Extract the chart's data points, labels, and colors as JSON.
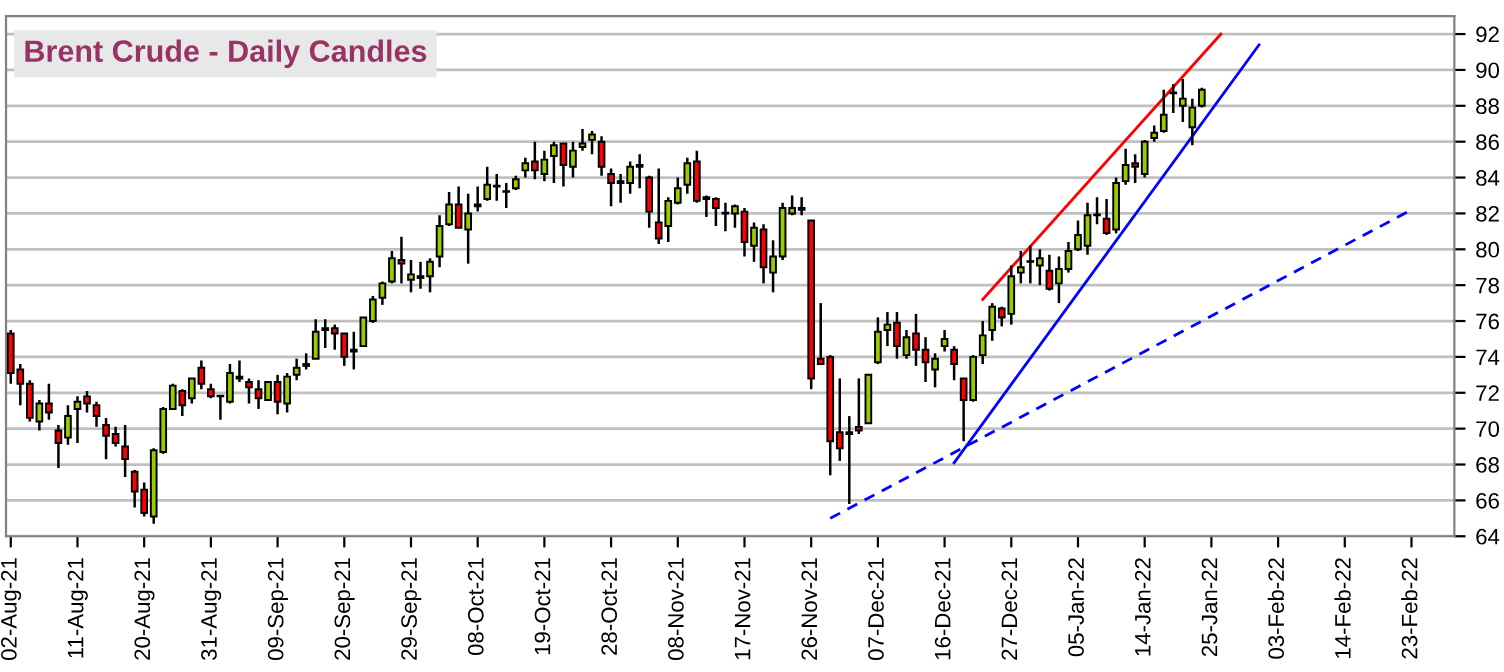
{
  "chart_data": {
    "type": "candlestick",
    "title": "Brent Crude - Daily Candles",
    "categories": [
      "02-Aug-21",
      null,
      null,
      null,
      null,
      null,
      null,
      "11-Aug-21",
      null,
      null,
      null,
      null,
      null,
      null,
      "20-Aug-21",
      null,
      null,
      null,
      null,
      null,
      null,
      "31-Aug-21",
      null,
      null,
      null,
      null,
      null,
      null,
      "09-Sep-21",
      null,
      null,
      null,
      null,
      null,
      null,
      "20-Sep-21",
      null,
      null,
      null,
      null,
      null,
      null,
      "29-Sep-21",
      null,
      null,
      null,
      null,
      null,
      null,
      "08-Oct-21",
      null,
      null,
      null,
      null,
      null,
      null,
      "19-Oct-21",
      null,
      null,
      null,
      null,
      null,
      null,
      "28-Oct-21",
      null,
      null,
      null,
      null,
      null,
      null,
      "08-Nov-21",
      null,
      null,
      null,
      null,
      null,
      null,
      "17-Nov-21",
      null,
      null,
      null,
      null,
      null,
      null,
      "26-Nov-21",
      null,
      null,
      null,
      null,
      null,
      null,
      "07-Dec-21",
      null,
      null,
      null,
      null,
      null,
      null,
      "16-Dec-21",
      null,
      null,
      null,
      null,
      null,
      null,
      "27-Dec-21",
      null,
      null,
      null,
      null,
      null,
      null,
      "05-Jan-22",
      null,
      null,
      null,
      null,
      null,
      null,
      "14-Jan-22",
      null,
      null,
      null,
      null,
      null,
      null,
      "25-Jan-22",
      null,
      null,
      null,
      null,
      null,
      null,
      "03-Feb-22",
      null,
      null,
      null,
      null,
      null,
      null,
      "14-Feb-22",
      null,
      null,
      null,
      null,
      null,
      null,
      "23-Feb-22",
      null,
      null,
      null,
      null
    ],
    "ohlc": [
      [
        75.3,
        75.5,
        72.5,
        73.1
      ],
      [
        73.3,
        73.6,
        71.3,
        72.5
      ],
      [
        72.5,
        72.7,
        70.4,
        70.6
      ],
      [
        70.4,
        71.6,
        69.9,
        71.4
      ],
      [
        71.4,
        72.5,
        70.5,
        70.9
      ],
      [
        69.9,
        70.2,
        67.8,
        69.2
      ],
      [
        69.5,
        71.3,
        69.1,
        70.7
      ],
      [
        71.1,
        71.8,
        69.2,
        71.5
      ],
      [
        71.8,
        72.1,
        70.9,
        71.4
      ],
      [
        71.3,
        71.5,
        70.1,
        70.7
      ],
      [
        70.2,
        70.6,
        68.3,
        69.6
      ],
      [
        69.7,
        70.1,
        69.0,
        69.2
      ],
      [
        69.0,
        70.2,
        67.3,
        68.3
      ],
      [
        67.6,
        67.7,
        65.6,
        66.5
      ],
      [
        66.6,
        67.0,
        65.1,
        65.3
      ],
      [
        65.1,
        68.9,
        64.7,
        68.8
      ],
      [
        68.7,
        71.2,
        68.6,
        71.1
      ],
      [
        71.1,
        72.5,
        71.1,
        72.4
      ],
      [
        72.1,
        72.2,
        70.7,
        71.3
      ],
      [
        71.7,
        72.8,
        71.4,
        72.8
      ],
      [
        73.4,
        73.8,
        72.2,
        72.5
      ],
      [
        72.2,
        72.5,
        71.7,
        71.8
      ],
      [
        71.8,
        71.8,
        70.5,
        71.8
      ],
      [
        71.5,
        73.6,
        71.4,
        73.1
      ],
      [
        72.8,
        73.8,
        72.6,
        72.9
      ],
      [
        72.6,
        72.8,
        71.4,
        72.3
      ],
      [
        72.2,
        72.7,
        71.1,
        71.7
      ],
      [
        71.6,
        72.6,
        71.6,
        72.6
      ],
      [
        72.6,
        73.0,
        70.8,
        71.5
      ],
      [
        71.4,
        73.1,
        70.9,
        72.9
      ],
      [
        73.0,
        73.9,
        72.7,
        73.4
      ],
      [
        73.5,
        74.2,
        73.3,
        73.6
      ],
      [
        73.9,
        76.1,
        73.9,
        75.4
      ],
      [
        75.5,
        76.1,
        74.5,
        75.6
      ],
      [
        75.6,
        75.8,
        74.4,
        75.3
      ],
      [
        75.3,
        75.3,
        73.5,
        74.0
      ],
      [
        74.3,
        75.4,
        73.3,
        74.4
      ],
      [
        74.6,
        76.2,
        74.6,
        76.2
      ],
      [
        76.0,
        77.4,
        75.9,
        77.2
      ],
      [
        77.3,
        78.2,
        76.9,
        78.1
      ],
      [
        78.2,
        79.9,
        78.1,
        79.5
      ],
      [
        79.4,
        80.7,
        78.1,
        79.2
      ],
      [
        78.3,
        79.4,
        77.6,
        78.6
      ],
      [
        78.4,
        79.3,
        77.8,
        78.5
      ],
      [
        78.5,
        79.5,
        77.6,
        79.3
      ],
      [
        79.6,
        81.9,
        79.0,
        81.3
      ],
      [
        81.4,
        83.2,
        81.3,
        82.5
      ],
      [
        82.5,
        83.5,
        81.2,
        81.2
      ],
      [
        81.1,
        83.1,
        79.2,
        82.0
      ],
      [
        82.4,
        83.5,
        82.1,
        82.5
      ],
      [
        82.8,
        84.6,
        82.7,
        83.6
      ],
      [
        83.5,
        84.2,
        82.7,
        83.5
      ],
      [
        83.2,
        83.7,
        82.3,
        83.2
      ],
      [
        83.4,
        84.1,
        83.3,
        83.9
      ],
      [
        84.4,
        85.1,
        84.0,
        84.8
      ],
      [
        84.9,
        86.0,
        83.9,
        84.4
      ],
      [
        84.2,
        85.5,
        83.8,
        85.0
      ],
      [
        85.2,
        86.0,
        83.7,
        85.8
      ],
      [
        85.9,
        85.9,
        83.5,
        84.7
      ],
      [
        84.6,
        86.0,
        84.0,
        85.5
      ],
      [
        85.7,
        86.7,
        85.5,
        85.9
      ],
      [
        86.1,
        86.6,
        85.3,
        86.4
      ],
      [
        86.0,
        86.3,
        84.1,
        84.6
      ],
      [
        84.2,
        84.5,
        82.4,
        83.7
      ],
      [
        83.7,
        84.2,
        82.6,
        83.8
      ],
      [
        83.7,
        84.9,
        83.1,
        84.6
      ],
      [
        84.6,
        85.3,
        83.4,
        84.7
      ],
      [
        84.0,
        84.1,
        81.2,
        82.1
      ],
      [
        81.5,
        84.5,
        80.3,
        80.6
      ],
      [
        81.3,
        82.9,
        80.4,
        82.7
      ],
      [
        82.6,
        84.0,
        82.5,
        83.4
      ],
      [
        83.6,
        85.1,
        83.1,
        84.8
      ],
      [
        84.9,
        85.5,
        82.6,
        82.7
      ],
      [
        82.8,
        83.0,
        81.8,
        82.9
      ],
      [
        82.8,
        82.9,
        81.3,
        82.3
      ],
      [
        82.0,
        82.6,
        81.0,
        82.0
      ],
      [
        82.0,
        82.5,
        81.2,
        82.4
      ],
      [
        82.1,
        82.3,
        79.6,
        80.4
      ],
      [
        80.2,
        81.5,
        79.3,
        81.2
      ],
      [
        81.1,
        81.4,
        78.1,
        79.0
      ],
      [
        78.7,
        80.5,
        77.6,
        79.6
      ],
      [
        79.6,
        82.6,
        79.4,
        82.3
      ],
      [
        82.0,
        83.0,
        81.9,
        82.3
      ],
      [
        82.2,
        82.9,
        81.9,
        82.3
      ],
      [
        81.6,
        81.6,
        72.2,
        72.8
      ],
      [
        73.9,
        77.0,
        73.6,
        73.6
      ],
      [
        74.0,
        74.1,
        67.4,
        69.3
      ],
      [
        69.8,
        72.8,
        68.2,
        68.9
      ],
      [
        69.7,
        70.7,
        65.8,
        69.8
      ],
      [
        70.1,
        72.8,
        69.7,
        69.9
      ],
      [
        70.3,
        73.0,
        70.3,
        73.0
      ],
      [
        73.7,
        76.2,
        73.6,
        75.4
      ],
      [
        75.5,
        76.5,
        74.6,
        75.8
      ],
      [
        75.9,
        76.5,
        73.9,
        74.6
      ],
      [
        74.1,
        75.5,
        73.9,
        75.1
      ],
      [
        75.3,
        76.4,
        73.5,
        74.4
      ],
      [
        74.4,
        75.1,
        72.6,
        73.7
      ],
      [
        73.3,
        74.2,
        72.3,
        73.9
      ],
      [
        74.6,
        75.5,
        74.3,
        75.0
      ],
      [
        74.4,
        74.6,
        72.7,
        73.6
      ],
      [
        72.8,
        72.8,
        69.3,
        71.6
      ],
      [
        71.6,
        74.1,
        71.5,
        74.0
      ],
      [
        74.1,
        76.0,
        73.6,
        75.2
      ],
      [
        75.5,
        77.0,
        74.9,
        76.8
      ],
      [
        76.7,
        76.8,
        75.7,
        76.2
      ],
      [
        76.4,
        79.1,
        75.8,
        78.5
      ],
      [
        78.7,
        79.9,
        78.1,
        79.0
      ],
      [
        79.3,
        80.2,
        78.1,
        79.3
      ],
      [
        79.1,
        80.0,
        78.0,
        79.5
      ],
      [
        78.8,
        79.7,
        77.7,
        77.8
      ],
      [
        78.1,
        79.6,
        77.0,
        78.9
      ],
      [
        78.9,
        80.4,
        78.7,
        79.9
      ],
      [
        80.0,
        81.6,
        79.9,
        80.8
      ],
      [
        80.2,
        82.6,
        79.7,
        81.9
      ],
      [
        81.9,
        82.9,
        81.4,
        81.9
      ],
      [
        81.7,
        82.8,
        80.8,
        80.9
      ],
      [
        81.1,
        84.0,
        80.9,
        83.7
      ],
      [
        83.8,
        85.6,
        83.6,
        84.7
      ],
      [
        84.8,
        85.3,
        83.7,
        84.6
      ],
      [
        84.2,
        86.1,
        84.0,
        86.0
      ],
      [
        86.2,
        86.9,
        86.0,
        86.5
      ],
      [
        86.6,
        88.9,
        86.5,
        87.5
      ],
      [
        88.7,
        89.2,
        87.6,
        88.7
      ],
      [
        88.0,
        89.5,
        87.1,
        88.4
      ],
      [
        86.8,
        88.4,
        85.8,
        87.9
      ],
      [
        88.0,
        89.0,
        87.9,
        88.9
      ],
      null,
      null,
      null,
      null,
      null,
      null,
      null,
      null,
      null,
      null,
      null,
      null,
      null,
      null,
      null,
      null,
      null,
      null,
      null,
      null,
      null,
      null,
      null,
      null,
      null,
      null
    ],
    "colors": [
      "#ff0000",
      "#ff0000",
      "#ff0000",
      "#99cc00",
      "#ff0000",
      "#ff0000",
      "#99cc00",
      "#99cc00",
      "#ff0000",
      "#ff0000",
      "#ff0000",
      "#ff0000",
      "#ff0000",
      "#ff0000",
      "#ff0000",
      "#99cc00",
      "#99cc00",
      "#99cc00",
      "#ff0000",
      "#99cc00",
      "#ff0000",
      "#ff0000",
      "#99cc00",
      "#99cc00",
      "#99cc00",
      "#ff0000",
      "#ff0000",
      "#99cc00",
      "#ff0000",
      "#99cc00",
      "#99cc00",
      "#99cc00",
      "#99cc00",
      "#99cc00",
      "#ff0000",
      "#ff0000",
      "#99cc00",
      "#99cc00",
      "#99cc00",
      "#99cc00",
      "#99cc00",
      "#ff0000",
      "#99cc00",
      "#99cc00",
      "#99cc00",
      "#99cc00",
      "#99cc00",
      "#ff0000",
      "#99cc00",
      "#99cc00",
      "#99cc00",
      "#99cc00",
      "#99cc00",
      "#99cc00",
      "#99cc00",
      "#ff0000",
      "#99cc00",
      "#99cc00",
      "#ff0000",
      "#99cc00",
      "#99cc00",
      "#99cc00",
      "#ff0000",
      "#ff0000",
      "#99cc00",
      "#99cc00",
      "#99cc00",
      "#ff0000",
      "#ff0000",
      "#99cc00",
      "#99cc00",
      "#99cc00",
      "#ff0000",
      "#99cc00",
      "#ff0000",
      "#99cc00",
      "#99cc00",
      "#ff0000",
      "#99cc00",
      "#ff0000",
      "#99cc00",
      "#99cc00",
      "#99cc00",
      "#99cc00",
      "#ff0000",
      "#ff0000",
      "#ff0000",
      "#ff0000",
      "#99cc00",
      "#ff0000",
      "#99cc00",
      "#99cc00",
      "#99cc00",
      "#ff0000",
      "#99cc00",
      "#ff0000",
      "#ff0000",
      "#99cc00",
      "#99cc00",
      "#ff0000",
      "#ff0000",
      "#99cc00",
      "#99cc00",
      "#99cc00",
      "#ff0000",
      "#99cc00",
      "#99cc00",
      "#99cc00",
      "#99cc00",
      "#ff0000",
      "#99cc00",
      "#99cc00",
      "#99cc00",
      "#99cc00",
      "#99cc00",
      "#ff0000",
      "#99cc00",
      "#99cc00",
      "#ff0000",
      "#99cc00",
      "#99cc00",
      "#99cc00",
      "#99cc00",
      "#99cc00",
      "#99cc00",
      "#99cc00",
      null,
      null,
      null,
      null,
      null,
      null,
      null,
      null,
      null,
      null,
      null,
      null,
      null,
      null,
      null,
      null,
      null,
      null,
      null,
      null,
      null,
      null,
      null,
      null,
      null,
      null
    ],
    "series": [
      {
        "type": "line",
        "color": "#ff0000",
        "line_style": "solid",
        "values": [
          null,
          null,
          null,
          null,
          null,
          null,
          null,
          null,
          null,
          null,
          null,
          null,
          null,
          null,
          null,
          null,
          null,
          null,
          null,
          null,
          null,
          null,
          null,
          null,
          null,
          null,
          null,
          null,
          null,
          null,
          null,
          null,
          null,
          null,
          null,
          null,
          null,
          null,
          null,
          null,
          null,
          null,
          null,
          null,
          null,
          null,
          null,
          null,
          null,
          null,
          null,
          null,
          null,
          null,
          null,
          null,
          null,
          null,
          null,
          null,
          null,
          null,
          null,
          null,
          null,
          null,
          null,
          null,
          null,
          null,
          null,
          null,
          null,
          null,
          null,
          null,
          null,
          null,
          null,
          null,
          null,
          null,
          null,
          null,
          null,
          null,
          null,
          null,
          null,
          null,
          null,
          null,
          null,
          null,
          null,
          null,
          null,
          null,
          null,
          null,
          null,
          null,
          77.2,
          null,
          null,
          null,
          null,
          null,
          null,
          null,
          null,
          null,
          null,
          null,
          null,
          null,
          null,
          null,
          null,
          null,
          null,
          null,
          null,
          null,
          null,
          null,
          null,
          92.0,
          null,
          null,
          null,
          null,
          null,
          null,
          null,
          null,
          null,
          null,
          null,
          null,
          null,
          null,
          null,
          null,
          null,
          null,
          null,
          null,
          null,
          null,
          null,
          null
        ]
      },
      {
        "type": "line",
        "color": "#0000ff",
        "line_style": "solid",
        "values": [
          null,
          null,
          null,
          null,
          null,
          null,
          null,
          null,
          null,
          null,
          null,
          null,
          null,
          null,
          null,
          null,
          null,
          null,
          null,
          null,
          null,
          null,
          null,
          null,
          null,
          null,
          null,
          null,
          null,
          null,
          null,
          null,
          null,
          null,
          null,
          null,
          null,
          null,
          null,
          null,
          null,
          null,
          null,
          null,
          null,
          null,
          null,
          null,
          null,
          null,
          null,
          null,
          null,
          null,
          null,
          null,
          null,
          null,
          null,
          null,
          null,
          null,
          null,
          null,
          null,
          null,
          null,
          null,
          null,
          null,
          null,
          null,
          null,
          null,
          null,
          null,
          null,
          null,
          null,
          null,
          null,
          null,
          null,
          null,
          null,
          null,
          null,
          null,
          null,
          null,
          null,
          null,
          null,
          null,
          null,
          null,
          null,
          null,
          null,
          68.1,
          null,
          null,
          null,
          null,
          null,
          null,
          null,
          null,
          null,
          null,
          null,
          null,
          null,
          null,
          null,
          null,
          null,
          null,
          null,
          null,
          null,
          null,
          null,
          null,
          null,
          null,
          null,
          null,
          null,
          null,
          null,
          91.4,
          null,
          null,
          null,
          null,
          null,
          null,
          null,
          null,
          null,
          null,
          null,
          null,
          null,
          null,
          null,
          null,
          null,
          null,
          null,
          null
        ]
      },
      {
        "type": "line",
        "color": "#0000ff",
        "line_style": "dashed",
        "values": [
          null,
          null,
          null,
          null,
          null,
          null,
          null,
          null,
          null,
          null,
          null,
          null,
          null,
          null,
          null,
          null,
          null,
          null,
          null,
          null,
          null,
          null,
          null,
          null,
          null,
          null,
          null,
          null,
          null,
          null,
          null,
          null,
          null,
          null,
          null,
          null,
          null,
          null,
          null,
          null,
          null,
          null,
          null,
          null,
          null,
          null,
          null,
          null,
          null,
          null,
          null,
          null,
          null,
          null,
          null,
          null,
          null,
          null,
          null,
          null,
          null,
          null,
          null,
          null,
          null,
          null,
          null,
          null,
          null,
          null,
          null,
          null,
          null,
          null,
          null,
          null,
          null,
          null,
          null,
          null,
          null,
          null,
          null,
          null,
          null,
          null,
          65.0,
          null,
          null,
          null,
          null,
          null,
          null,
          null,
          null,
          null,
          null,
          null,
          null,
          null,
          null,
          null,
          null,
          null,
          null,
          null,
          null,
          null,
          null,
          null,
          null,
          null,
          null,
          null,
          null,
          null,
          null,
          null,
          null,
          null,
          null,
          null,
          null,
          null,
          null,
          null,
          null,
          null,
          null,
          null,
          null,
          null,
          null,
          null,
          null,
          null,
          null,
          null,
          null,
          null,
          null,
          null,
          null,
          null,
          null,
          null,
          null,
          82.2,
          null,
          null,
          null,
          null
        ]
      }
    ],
    "ylim": [
      64,
      93
    ],
    "yticks": [
      64,
      66,
      68,
      70,
      72,
      74,
      76,
      78,
      80,
      82,
      84,
      86,
      88,
      90,
      92
    ],
    "grid": "y"
  }
}
